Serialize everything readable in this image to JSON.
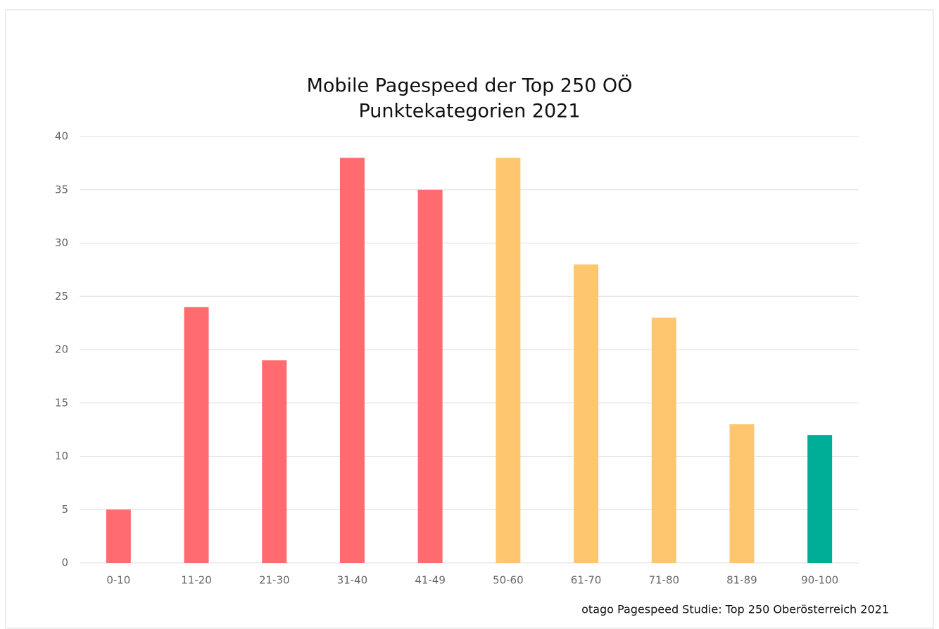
{
  "chart_data": {
    "type": "bar",
    "title": "Mobile Pagespeed der Top 250 OÖ",
    "subtitle": "Punktekategorien 2021",
    "source": "otago Pagespeed Studie: Top 250 Oberösterreich 2021",
    "categories": [
      "0-10",
      "11-20",
      "21-30",
      "31-40",
      "41-49",
      "50-60",
      "61-70",
      "71-80",
      "81-89",
      "90-100"
    ],
    "values": [
      5,
      24,
      19,
      38,
      35,
      38,
      28,
      23,
      13,
      12
    ],
    "colors": [
      "#ff6b6f",
      "#ff6b6f",
      "#ff6b6f",
      "#ff6b6f",
      "#ff6b6f",
      "#fec76f",
      "#fec76f",
      "#fec76f",
      "#fec76f",
      "#00ae98"
    ],
    "ylim": [
      0,
      40
    ],
    "yticks": [
      0,
      5,
      10,
      15,
      20,
      25,
      30,
      35,
      40
    ],
    "grid": true
  }
}
